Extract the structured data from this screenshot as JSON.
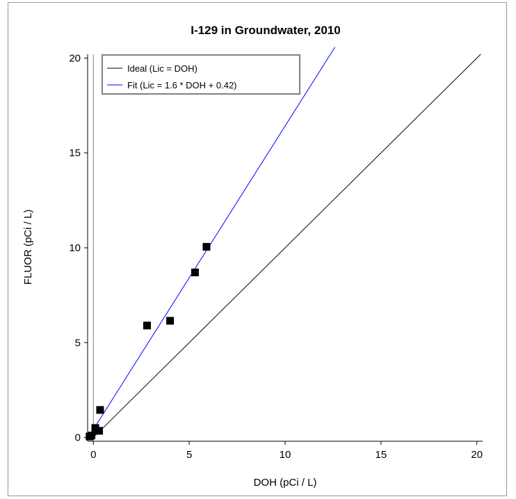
{
  "chart_data": {
    "type": "scatter",
    "title": "I-129 in Groundwater, 2010",
    "xlabel": "DOH (pCi / L)",
    "ylabel": "FLUOR (pCi / L)",
    "xlim": [
      -0.3,
      20.3
    ],
    "ylim": [
      -0.2,
      20.2
    ],
    "xticks": [
      0,
      5,
      10,
      15,
      20
    ],
    "yticks": [
      0,
      5,
      10,
      15,
      20
    ],
    "xtick_labels": [
      "0",
      "5",
      "10",
      "15",
      "20"
    ],
    "ytick_labels": [
      "0",
      "5",
      "10",
      "15",
      "20"
    ],
    "points": [
      {
        "x": -0.2,
        "y": 0.05
      },
      {
        "x": -0.1,
        "y": 0.1
      },
      {
        "x": 0.1,
        "y": 0.5
      },
      {
        "x": 0.3,
        "y": 0.35
      },
      {
        "x": 0.35,
        "y": 1.45
      },
      {
        "x": 2.8,
        "y": 5.9
      },
      {
        "x": 4.0,
        "y": 6.15
      },
      {
        "x": 5.3,
        "y": 8.7
      },
      {
        "x": 5.9,
        "y": 10.05
      }
    ],
    "lines": [
      {
        "name": "Ideal (Lic = DOH)",
        "slope": 1.0,
        "intercept": 0,
        "x_range": [
          0,
          20.2
        ],
        "color": "#000000"
      },
      {
        "name": "Fit (Lic = 1.6 * DOH + 0.42)",
        "slope": 1.6,
        "intercept": 0.42,
        "x_range": [
          0,
          12.6
        ],
        "color": "#0000ff"
      }
    ],
    "legend_position": "top-left",
    "grid": false
  }
}
